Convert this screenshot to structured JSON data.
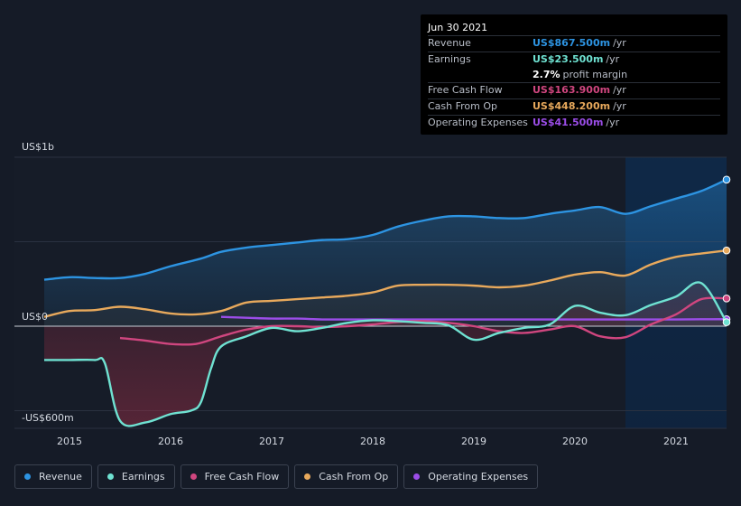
{
  "tooltip": {
    "date": "Jun 30 2021",
    "rows": [
      {
        "label": "Revenue",
        "value": "US$867.500m",
        "unit": "/yr",
        "color": "#2d94e2"
      },
      {
        "label": "Earnings",
        "value": "US$23.500m",
        "unit": "/yr",
        "color": "#6fe2d2"
      },
      {
        "label": "",
        "value": "2.7%",
        "unit": "profit margin",
        "color": "#ffffff"
      },
      {
        "label": "Free Cash Flow",
        "value": "US$163.900m",
        "unit": "/yr",
        "color": "#d0467f"
      },
      {
        "label": "Cash From Op",
        "value": "US$448.200m",
        "unit": "/yr",
        "color": "#e8a95c"
      },
      {
        "label": "Operating Expenses",
        "value": "US$41.500m",
        "unit": "/yr",
        "color": "#9b4de8"
      }
    ]
  },
  "legend": [
    {
      "label": "Revenue",
      "color": "#2d94e2"
    },
    {
      "label": "Earnings",
      "color": "#6fe2d2"
    },
    {
      "label": "Free Cash Flow",
      "color": "#d0467f"
    },
    {
      "label": "Cash From Op",
      "color": "#e8a95c"
    },
    {
      "label": "Operating Expenses",
      "color": "#9b4de8"
    }
  ],
  "chart_data": {
    "type": "area",
    "y_tick_labels": [
      "US$1b",
      "US$0",
      "-US$600m"
    ],
    "x_tick_labels": [
      "2015",
      "2016",
      "2017",
      "2018",
      "2019",
      "2020",
      "2021"
    ],
    "ylim": [
      -600,
      1000
    ],
    "y_unit": "US$m",
    "series": [
      {
        "name": "Revenue",
        "color": "#2d94e2",
        "x": [
          2014.75,
          2015.0,
          2015.25,
          2015.5,
          2015.75,
          2016.0,
          2016.3,
          2016.5,
          2016.75,
          2017.0,
          2017.25,
          2017.5,
          2017.75,
          2018.0,
          2018.25,
          2018.5,
          2018.75,
          2019.0,
          2019.25,
          2019.5,
          2019.75,
          2020.0,
          2020.25,
          2020.5,
          2020.75,
          2021.0,
          2021.25,
          2021.5
        ],
        "values": [
          275,
          290,
          285,
          285,
          310,
          355,
          400,
          440,
          465,
          480,
          495,
          510,
          515,
          540,
          590,
          625,
          650,
          650,
          640,
          640,
          665,
          685,
          705,
          665,
          710,
          755,
          800,
          867.5
        ]
      },
      {
        "name": "Earnings",
        "color": "#6fe2d2",
        "x": [
          2014.75,
          2015.0,
          2015.25,
          2015.35,
          2015.5,
          2015.75,
          2016.0,
          2016.2,
          2016.3,
          2016.4,
          2016.5,
          2016.75,
          2017.0,
          2017.25,
          2017.5,
          2017.75,
          2018.0,
          2018.25,
          2018.5,
          2018.75,
          2019.0,
          2019.25,
          2019.5,
          2019.75,
          2020.0,
          2020.25,
          2020.5,
          2020.75,
          2021.0,
          2021.25,
          2021.5
        ],
        "values": [
          -200,
          -200,
          -200,
          -220,
          -560,
          -570,
          -520,
          -500,
          -450,
          -250,
          -120,
          -60,
          -10,
          -30,
          -10,
          20,
          35,
          30,
          20,
          5,
          -80,
          -40,
          -10,
          10,
          120,
          80,
          65,
          125,
          175,
          255,
          23.5
        ]
      },
      {
        "name": "Free Cash Flow",
        "color": "#d0467f",
        "x": [
          2015.5,
          2015.75,
          2016.0,
          2016.25,
          2016.5,
          2016.75,
          2017.0,
          2017.25,
          2017.5,
          2017.75,
          2018.0,
          2018.25,
          2018.5,
          2018.75,
          2019.0,
          2019.25,
          2019.5,
          2019.75,
          2020.0,
          2020.25,
          2020.5,
          2020.75,
          2021.0,
          2021.25,
          2021.5
        ],
        "values": [
          -70,
          -85,
          -105,
          -105,
          -60,
          -20,
          0,
          0,
          -5,
          0,
          10,
          25,
          30,
          20,
          0,
          -30,
          -40,
          -20,
          0,
          -60,
          -65,
          10,
          70,
          160,
          163.9
        ]
      },
      {
        "name": "Cash From Op",
        "color": "#e8a95c",
        "x": [
          2014.75,
          2015.0,
          2015.25,
          2015.5,
          2015.75,
          2016.0,
          2016.25,
          2016.5,
          2016.75,
          2017.0,
          2017.25,
          2017.5,
          2017.75,
          2018.0,
          2018.25,
          2018.5,
          2018.75,
          2019.0,
          2019.25,
          2019.5,
          2019.75,
          2020.0,
          2020.25,
          2020.5,
          2020.75,
          2021.0,
          2021.25,
          2021.5
        ],
        "values": [
          55,
          90,
          95,
          115,
          100,
          75,
          70,
          90,
          140,
          150,
          160,
          170,
          180,
          200,
          240,
          245,
          245,
          240,
          230,
          240,
          270,
          305,
          320,
          300,
          365,
          410,
          430,
          448.2
        ]
      },
      {
        "name": "Operating Expenses",
        "color": "#9b4de8",
        "x": [
          2016.5,
          2016.75,
          2017.0,
          2017.25,
          2017.5,
          2017.75,
          2018.0,
          2018.25,
          2018.5,
          2018.75,
          2019.0,
          2019.25,
          2019.5,
          2019.75,
          2020.0,
          2020.25,
          2020.5,
          2020.75,
          2021.0,
          2021.25,
          2021.5
        ],
        "values": [
          55,
          50,
          45,
          45,
          40,
          40,
          40,
          40,
          40,
          40,
          40,
          40,
          40,
          40,
          40,
          40,
          40,
          40,
          40,
          41,
          41.5
        ]
      }
    ],
    "highlight_start_x": 2020.5,
    "grid": true,
    "legend_position": "bottom"
  }
}
